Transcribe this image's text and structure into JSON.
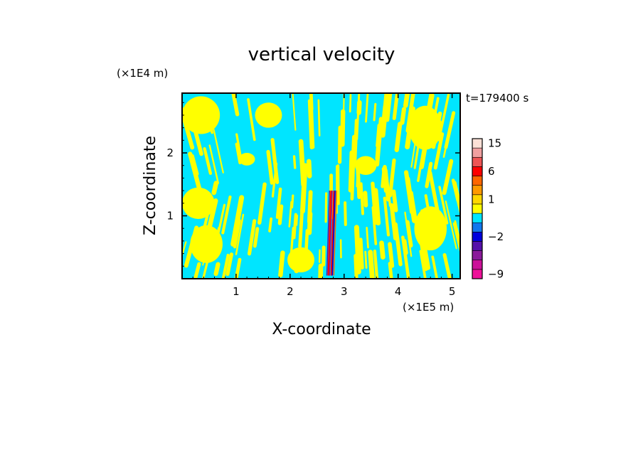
{
  "chart_data": {
    "type": "heatmap",
    "title": "vertical velocity",
    "xlabel": "X-coordinate",
    "ylabel": "Z-coordinate",
    "x_units": "(×1E5 m)",
    "y_units": "(×1E4 m)",
    "time_label": "t=179400 s",
    "xlim": [
      0,
      5.15
    ],
    "ylim": [
      0,
      2.95
    ],
    "x_ticks": [
      1,
      2,
      3,
      4,
      5
    ],
    "y_ticks": [
      1,
      2
    ],
    "colorbar": {
      "tick_labels": [
        "15",
        "6",
        "1",
        "−2",
        "−9"
      ],
      "tick_values": [
        15,
        6,
        1,
        -2,
        -9
      ],
      "levels": [
        {
          "value": -9,
          "color": "#ee1199"
        },
        {
          "value": -6,
          "color": "#cc1199"
        },
        {
          "value": -4,
          "color": "#8a1a9a"
        },
        {
          "value": -3,
          "color": "#5511aa"
        },
        {
          "value": -2,
          "color": "#0000dd"
        },
        {
          "value": -1,
          "color": "#1177ee"
        },
        {
          "value": 0,
          "color": "#00e5ff"
        },
        {
          "value": 0.5,
          "color": "#ffff00"
        },
        {
          "value": 1,
          "color": "#ffd700"
        },
        {
          "value": 2,
          "color": "#ff9900"
        },
        {
          "value": 4,
          "color": "#ff6600"
        },
        {
          "value": 6,
          "color": "#ff0000"
        },
        {
          "value": 9,
          "color": "#ee5555"
        },
        {
          "value": 12,
          "color": "#f0a0a0"
        },
        {
          "value": 15,
          "color": "#fce0d6"
        }
      ]
    },
    "field": {
      "background_color": "#00e5ff",
      "positive_color": "#ffff00",
      "strong_feature": {
        "x_center": 2.8,
        "z_top": 1.4,
        "description": "narrow core of strong up/down motion"
      }
    }
  }
}
